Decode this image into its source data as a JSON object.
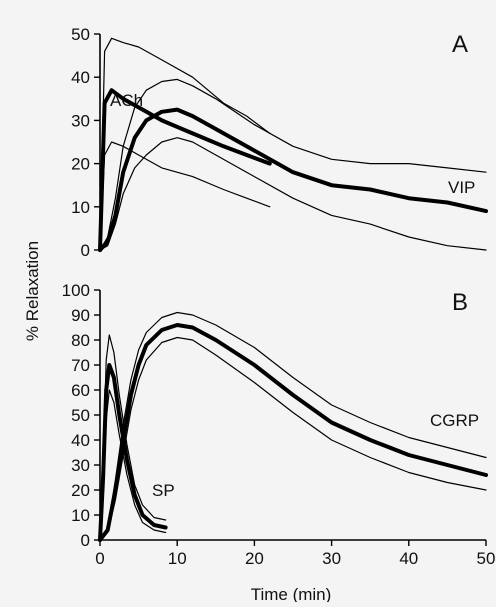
{
  "chart_data": [
    {
      "type": "line",
      "panel": "A",
      "ylim": [
        0,
        50
      ],
      "xlim": [
        0,
        50
      ],
      "yticks": [
        0,
        10,
        20,
        30,
        40,
        50
      ],
      "xticks": [],
      "series": [
        {
          "name": "ACh",
          "role": "mean",
          "x": [
            0,
            0.6,
            1.5,
            3,
            5,
            8,
            12,
            16,
            19,
            22
          ],
          "y": [
            0,
            34,
            37,
            35,
            33,
            30,
            27,
            24,
            22,
            20
          ]
        },
        {
          "name": "ACh",
          "role": "upper",
          "x": [
            0,
            0.6,
            1.5,
            3,
            5,
            8,
            12,
            16,
            19,
            22
          ],
          "y": [
            0,
            46,
            49,
            48,
            47,
            44,
            40,
            34,
            31,
            27
          ]
        },
        {
          "name": "ACh",
          "role": "lower",
          "x": [
            0,
            0.6,
            1.5,
            3,
            5,
            8,
            12,
            16,
            19,
            22
          ],
          "y": [
            0,
            22,
            25,
            24,
            22,
            19,
            17,
            14,
            12,
            10
          ]
        },
        {
          "name": "VIP",
          "role": "mean",
          "x": [
            0,
            1,
            2,
            3,
            4.5,
            6,
            8,
            10,
            12,
            15,
            20,
            25,
            30,
            35,
            40,
            45,
            50
          ],
          "y": [
            0,
            2,
            8,
            18,
            26,
            30,
            32,
            32.5,
            31,
            28,
            23,
            18,
            15,
            14,
            12,
            11,
            9
          ]
        },
        {
          "name": "VIP",
          "role": "upper",
          "x": [
            0,
            1,
            2,
            3,
            4.5,
            6,
            8,
            10,
            12,
            15,
            20,
            25,
            30,
            35,
            40,
            45,
            50
          ],
          "y": [
            0,
            3,
            12,
            24,
            33,
            37,
            39,
            39.5,
            38,
            35,
            29,
            24,
            21,
            20,
            20,
            19,
            18
          ]
        },
        {
          "name": "VIP",
          "role": "lower",
          "x": [
            0,
            1,
            2,
            3,
            4.5,
            6,
            8,
            10,
            12,
            15,
            20,
            25,
            30,
            35,
            40,
            45,
            50
          ],
          "y": [
            0,
            1,
            6,
            13,
            19,
            22,
            25,
            26,
            25,
            22,
            17,
            12,
            8,
            6,
            3,
            1,
            0
          ]
        }
      ]
    },
    {
      "type": "line",
      "panel": "B",
      "ylim": [
        0,
        100
      ],
      "xlim": [
        0,
        50
      ],
      "yticks": [
        0,
        10,
        20,
        30,
        40,
        50,
        60,
        70,
        80,
        90,
        100
      ],
      "xticks": [
        0,
        10,
        20,
        30,
        40,
        50
      ],
      "series": [
        {
          "name": "SP",
          "role": "mean",
          "x": [
            0,
            0.4,
            0.8,
            1.2,
            1.8,
            2.5,
            3.5,
            4.5,
            5.5,
            7,
            8.5
          ],
          "y": [
            0,
            25,
            60,
            70,
            65,
            50,
            32,
            18,
            10,
            6,
            5
          ]
        },
        {
          "name": "SP",
          "role": "upper",
          "x": [
            0,
            0.4,
            0.8,
            1.2,
            1.8,
            2.5,
            3.5,
            4.5,
            5.5,
            7,
            8.5
          ],
          "y": [
            0,
            30,
            72,
            82,
            75,
            58,
            38,
            22,
            14,
            9,
            8
          ]
        },
        {
          "name": "SP",
          "role": "lower",
          "x": [
            0,
            0.4,
            0.8,
            1.2,
            1.8,
            2.5,
            3.5,
            4.5,
            5.5,
            7,
            8.5
          ],
          "y": [
            0,
            20,
            48,
            60,
            55,
            42,
            26,
            14,
            7,
            4,
            3
          ]
        },
        {
          "name": "CGRP",
          "role": "mean",
          "x": [
            0,
            1,
            2,
            3,
            4,
            5,
            6,
            8,
            10,
            12,
            15,
            20,
            25,
            30,
            35,
            40,
            45,
            50
          ],
          "y": [
            0,
            4,
            20,
            40,
            58,
            70,
            78,
            84,
            86,
            85,
            80,
            70,
            58,
            47,
            40,
            34,
            30,
            26
          ]
        },
        {
          "name": "CGRP",
          "role": "upper",
          "x": [
            0,
            1,
            2,
            3,
            4,
            5,
            6,
            8,
            10,
            12,
            15,
            20,
            25,
            30,
            35,
            40,
            45,
            50
          ],
          "y": [
            0,
            5,
            24,
            46,
            64,
            76,
            83,
            89,
            91,
            90,
            86,
            77,
            65,
            54,
            47,
            41,
            37,
            33
          ]
        },
        {
          "name": "CGRP",
          "role": "lower",
          "x": [
            0,
            1,
            2,
            3,
            4,
            5,
            6,
            8,
            10,
            12,
            15,
            20,
            25,
            30,
            35,
            40,
            45,
            50
          ],
          "y": [
            0,
            3,
            16,
            34,
            52,
            64,
            72,
            79,
            81,
            80,
            74,
            63,
            51,
            40,
            33,
            27,
            23,
            20
          ]
        }
      ]
    }
  ],
  "labels": {
    "panel_a": "A",
    "panel_b": "B",
    "ach": "ACh",
    "vip": "VIP",
    "sp": "SP",
    "cgrp": "CGRP",
    "ylabel": "% Relaxation",
    "xlabel": "Time (min)"
  }
}
